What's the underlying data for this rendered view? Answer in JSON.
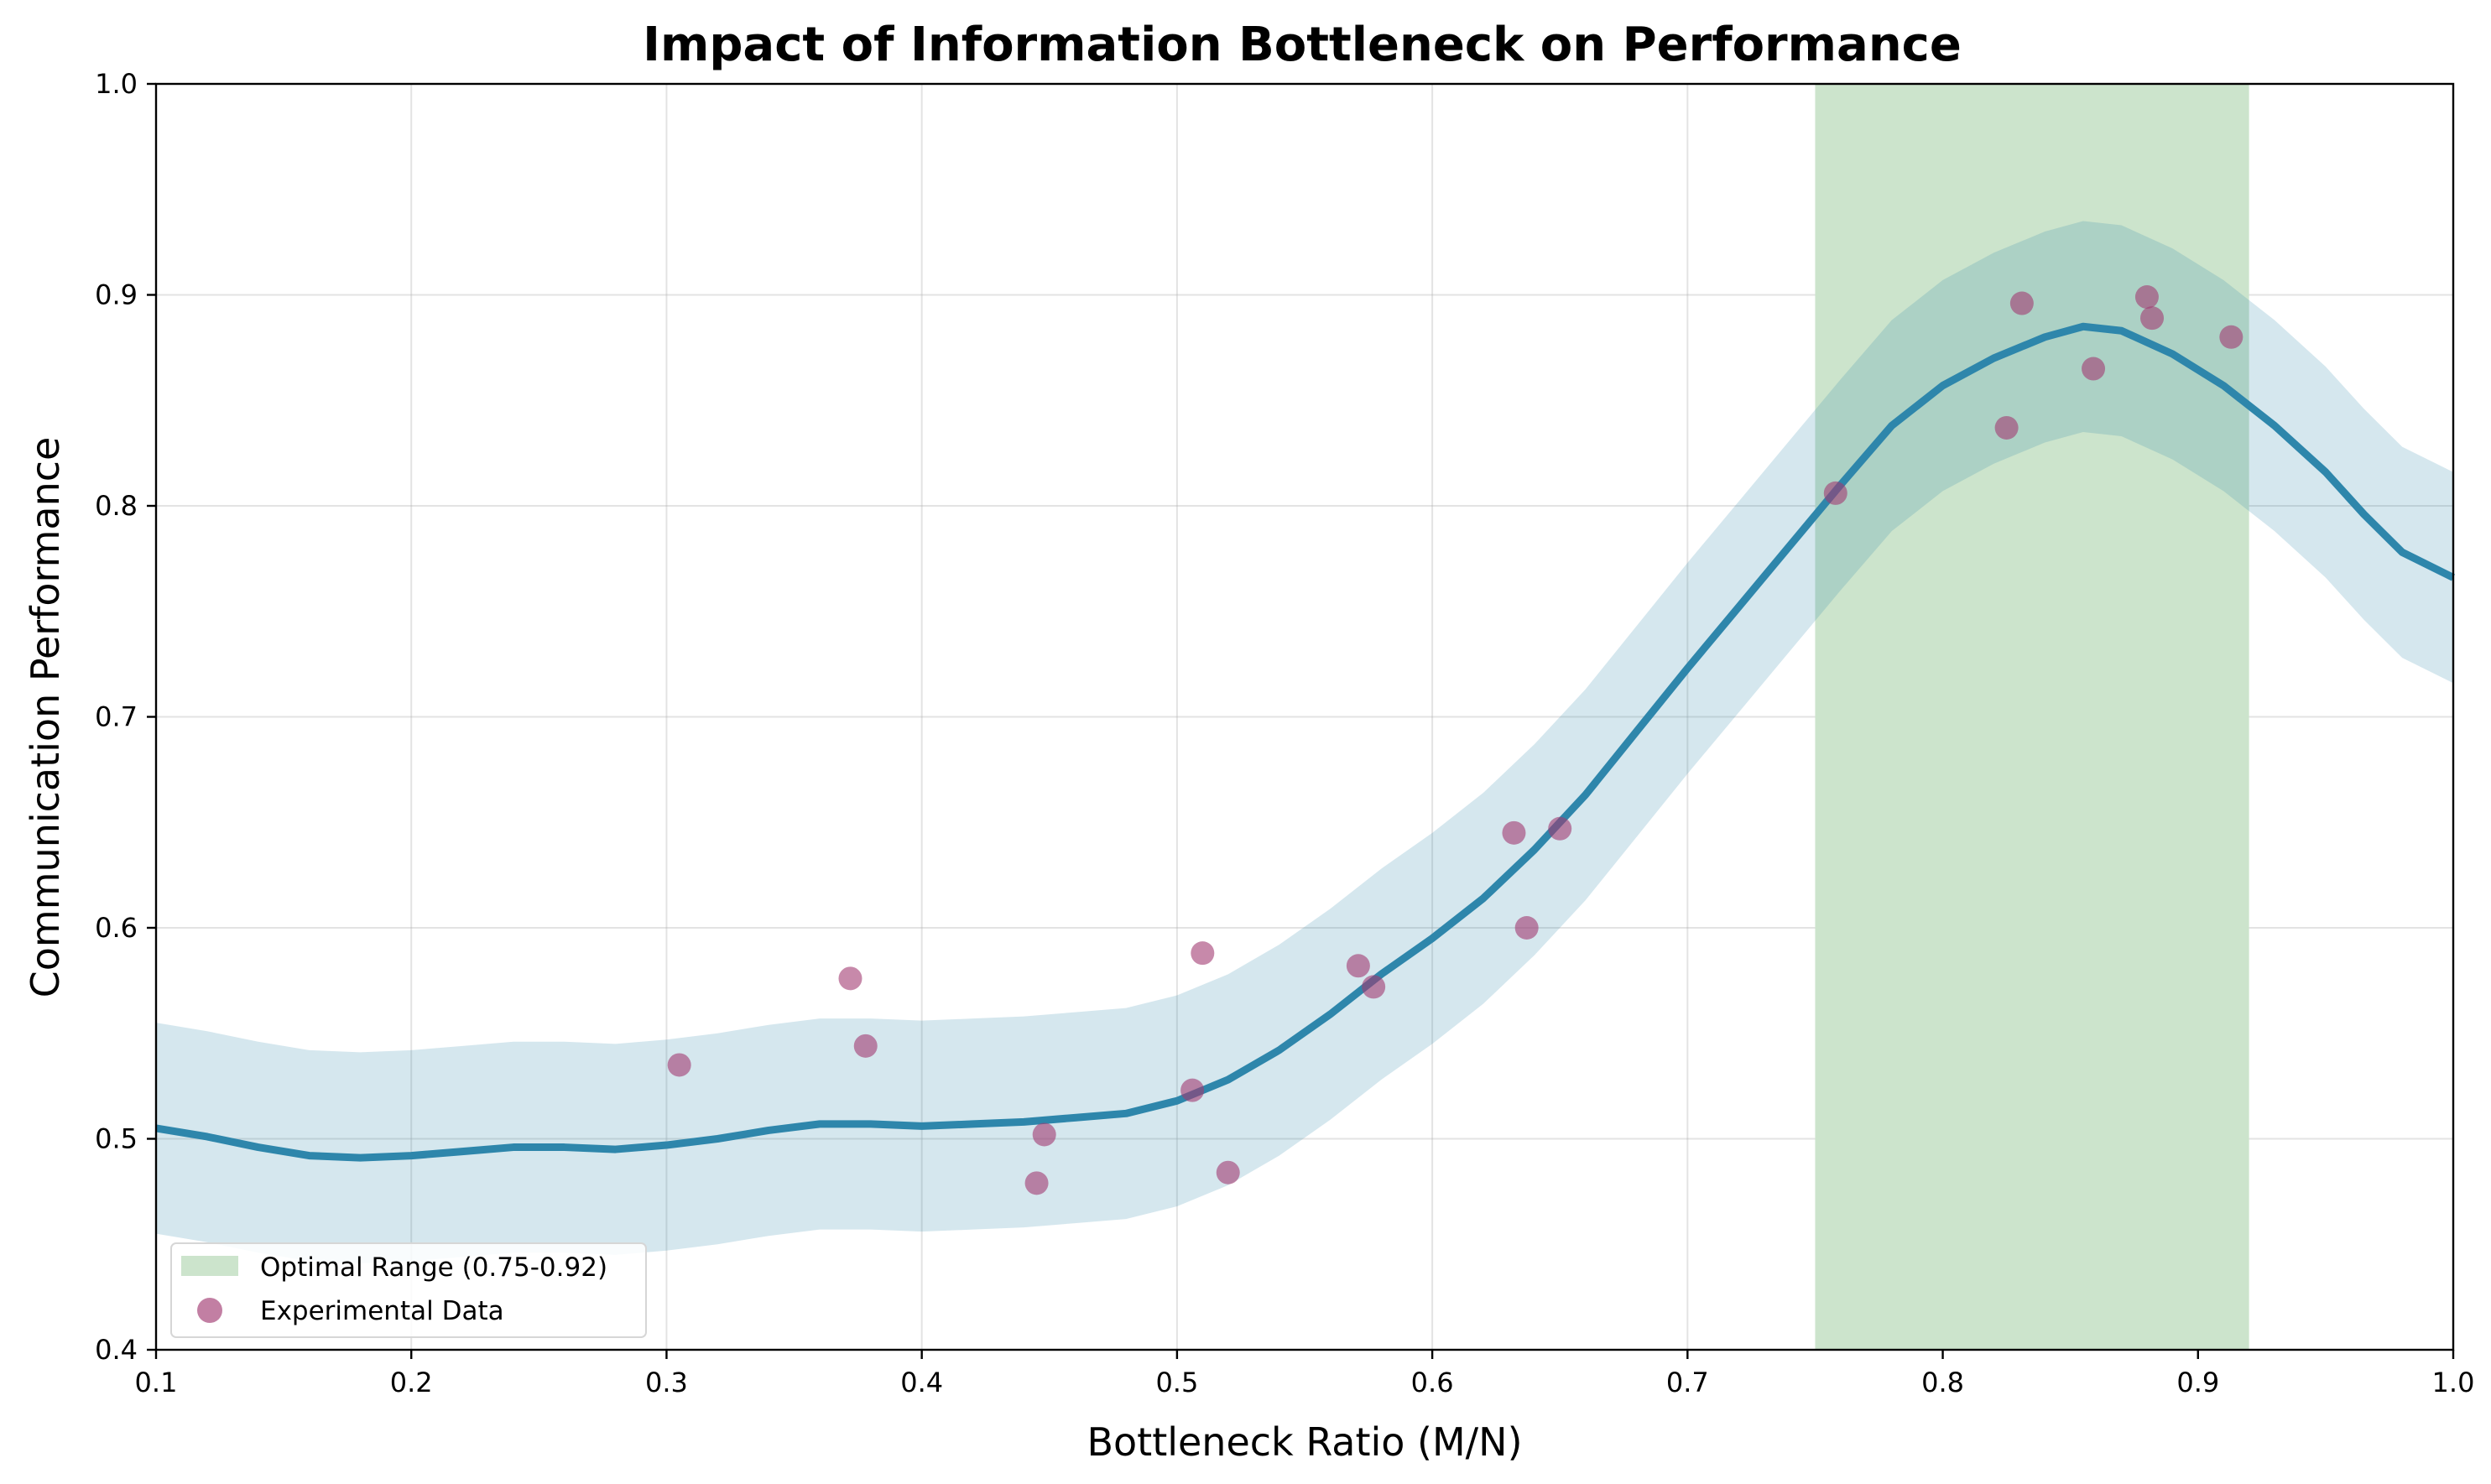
{
  "chart_data": {
    "type": "line",
    "title": "Impact of Information Bottleneck on Performance",
    "xlabel": "Bottleneck Ratio (M/N)",
    "ylabel": "Communication Performance",
    "xlim": [
      0.1,
      1.0
    ],
    "ylim": [
      0.4,
      1.0
    ],
    "xticks": [
      "0.1",
      "0.2",
      "0.3",
      "0.4",
      "0.5",
      "0.6",
      "0.7",
      "0.8",
      "0.9",
      "1.0"
    ],
    "yticks": [
      "0.4",
      "0.5",
      "0.6",
      "0.7",
      "0.8",
      "0.9",
      "1.0"
    ],
    "grid": true,
    "legend_position": "lower-left",
    "optimal_range": {
      "label": "Optimal Range (0.75-0.92)",
      "x_start": 0.75,
      "x_end": 0.92,
      "color": "#cce4cc"
    },
    "mean_curve": {
      "color": "#2e86ab",
      "band_halfwidth": 0.05,
      "band_color": "#d3e5ee",
      "points": [
        [
          0.1,
          0.505
        ],
        [
          0.12,
          0.501
        ],
        [
          0.14,
          0.496
        ],
        [
          0.16,
          0.492
        ],
        [
          0.18,
          0.491
        ],
        [
          0.2,
          0.492
        ],
        [
          0.22,
          0.494
        ],
        [
          0.24,
          0.496
        ],
        [
          0.26,
          0.496
        ],
        [
          0.28,
          0.495
        ],
        [
          0.3,
          0.497
        ],
        [
          0.32,
          0.5
        ],
        [
          0.34,
          0.504
        ],
        [
          0.36,
          0.507
        ],
        [
          0.38,
          0.507
        ],
        [
          0.4,
          0.506
        ],
        [
          0.42,
          0.507
        ],
        [
          0.44,
          0.508
        ],
        [
          0.46,
          0.51
        ],
        [
          0.48,
          0.512
        ],
        [
          0.5,
          0.518
        ],
        [
          0.52,
          0.528
        ],
        [
          0.54,
          0.542
        ],
        [
          0.56,
          0.559
        ],
        [
          0.58,
          0.578
        ],
        [
          0.6,
          0.595
        ],
        [
          0.62,
          0.614
        ],
        [
          0.64,
          0.637
        ],
        [
          0.66,
          0.663
        ],
        [
          0.68,
          0.693
        ],
        [
          0.7,
          0.723
        ],
        [
          0.72,
          0.752
        ],
        [
          0.74,
          0.781
        ],
        [
          0.76,
          0.81
        ],
        [
          0.78,
          0.838
        ],
        [
          0.8,
          0.857
        ],
        [
          0.82,
          0.87
        ],
        [
          0.84,
          0.88
        ],
        [
          0.855,
          0.885
        ],
        [
          0.87,
          0.883
        ],
        [
          0.89,
          0.872
        ],
        [
          0.91,
          0.857
        ],
        [
          0.93,
          0.838
        ],
        [
          0.95,
          0.816
        ],
        [
          0.965,
          0.796
        ],
        [
          0.98,
          0.778
        ],
        [
          1.0,
          0.766
        ]
      ]
    },
    "scatter": {
      "name": "Experimental Data",
      "color": "#a23b72",
      "points": [
        [
          0.305,
          0.535
        ],
        [
          0.372,
          0.576
        ],
        [
          0.378,
          0.544
        ],
        [
          0.445,
          0.479
        ],
        [
          0.448,
          0.502
        ],
        [
          0.506,
          0.523
        ],
        [
          0.51,
          0.588
        ],
        [
          0.52,
          0.484
        ],
        [
          0.571,
          0.582
        ],
        [
          0.577,
          0.572
        ],
        [
          0.632,
          0.645
        ],
        [
          0.637,
          0.6
        ],
        [
          0.65,
          0.647
        ],
        [
          0.758,
          0.806
        ],
        [
          0.825,
          0.837
        ],
        [
          0.831,
          0.896
        ],
        [
          0.859,
          0.865
        ],
        [
          0.88,
          0.899
        ],
        [
          0.882,
          0.889
        ],
        [
          0.913,
          0.88
        ]
      ]
    }
  }
}
